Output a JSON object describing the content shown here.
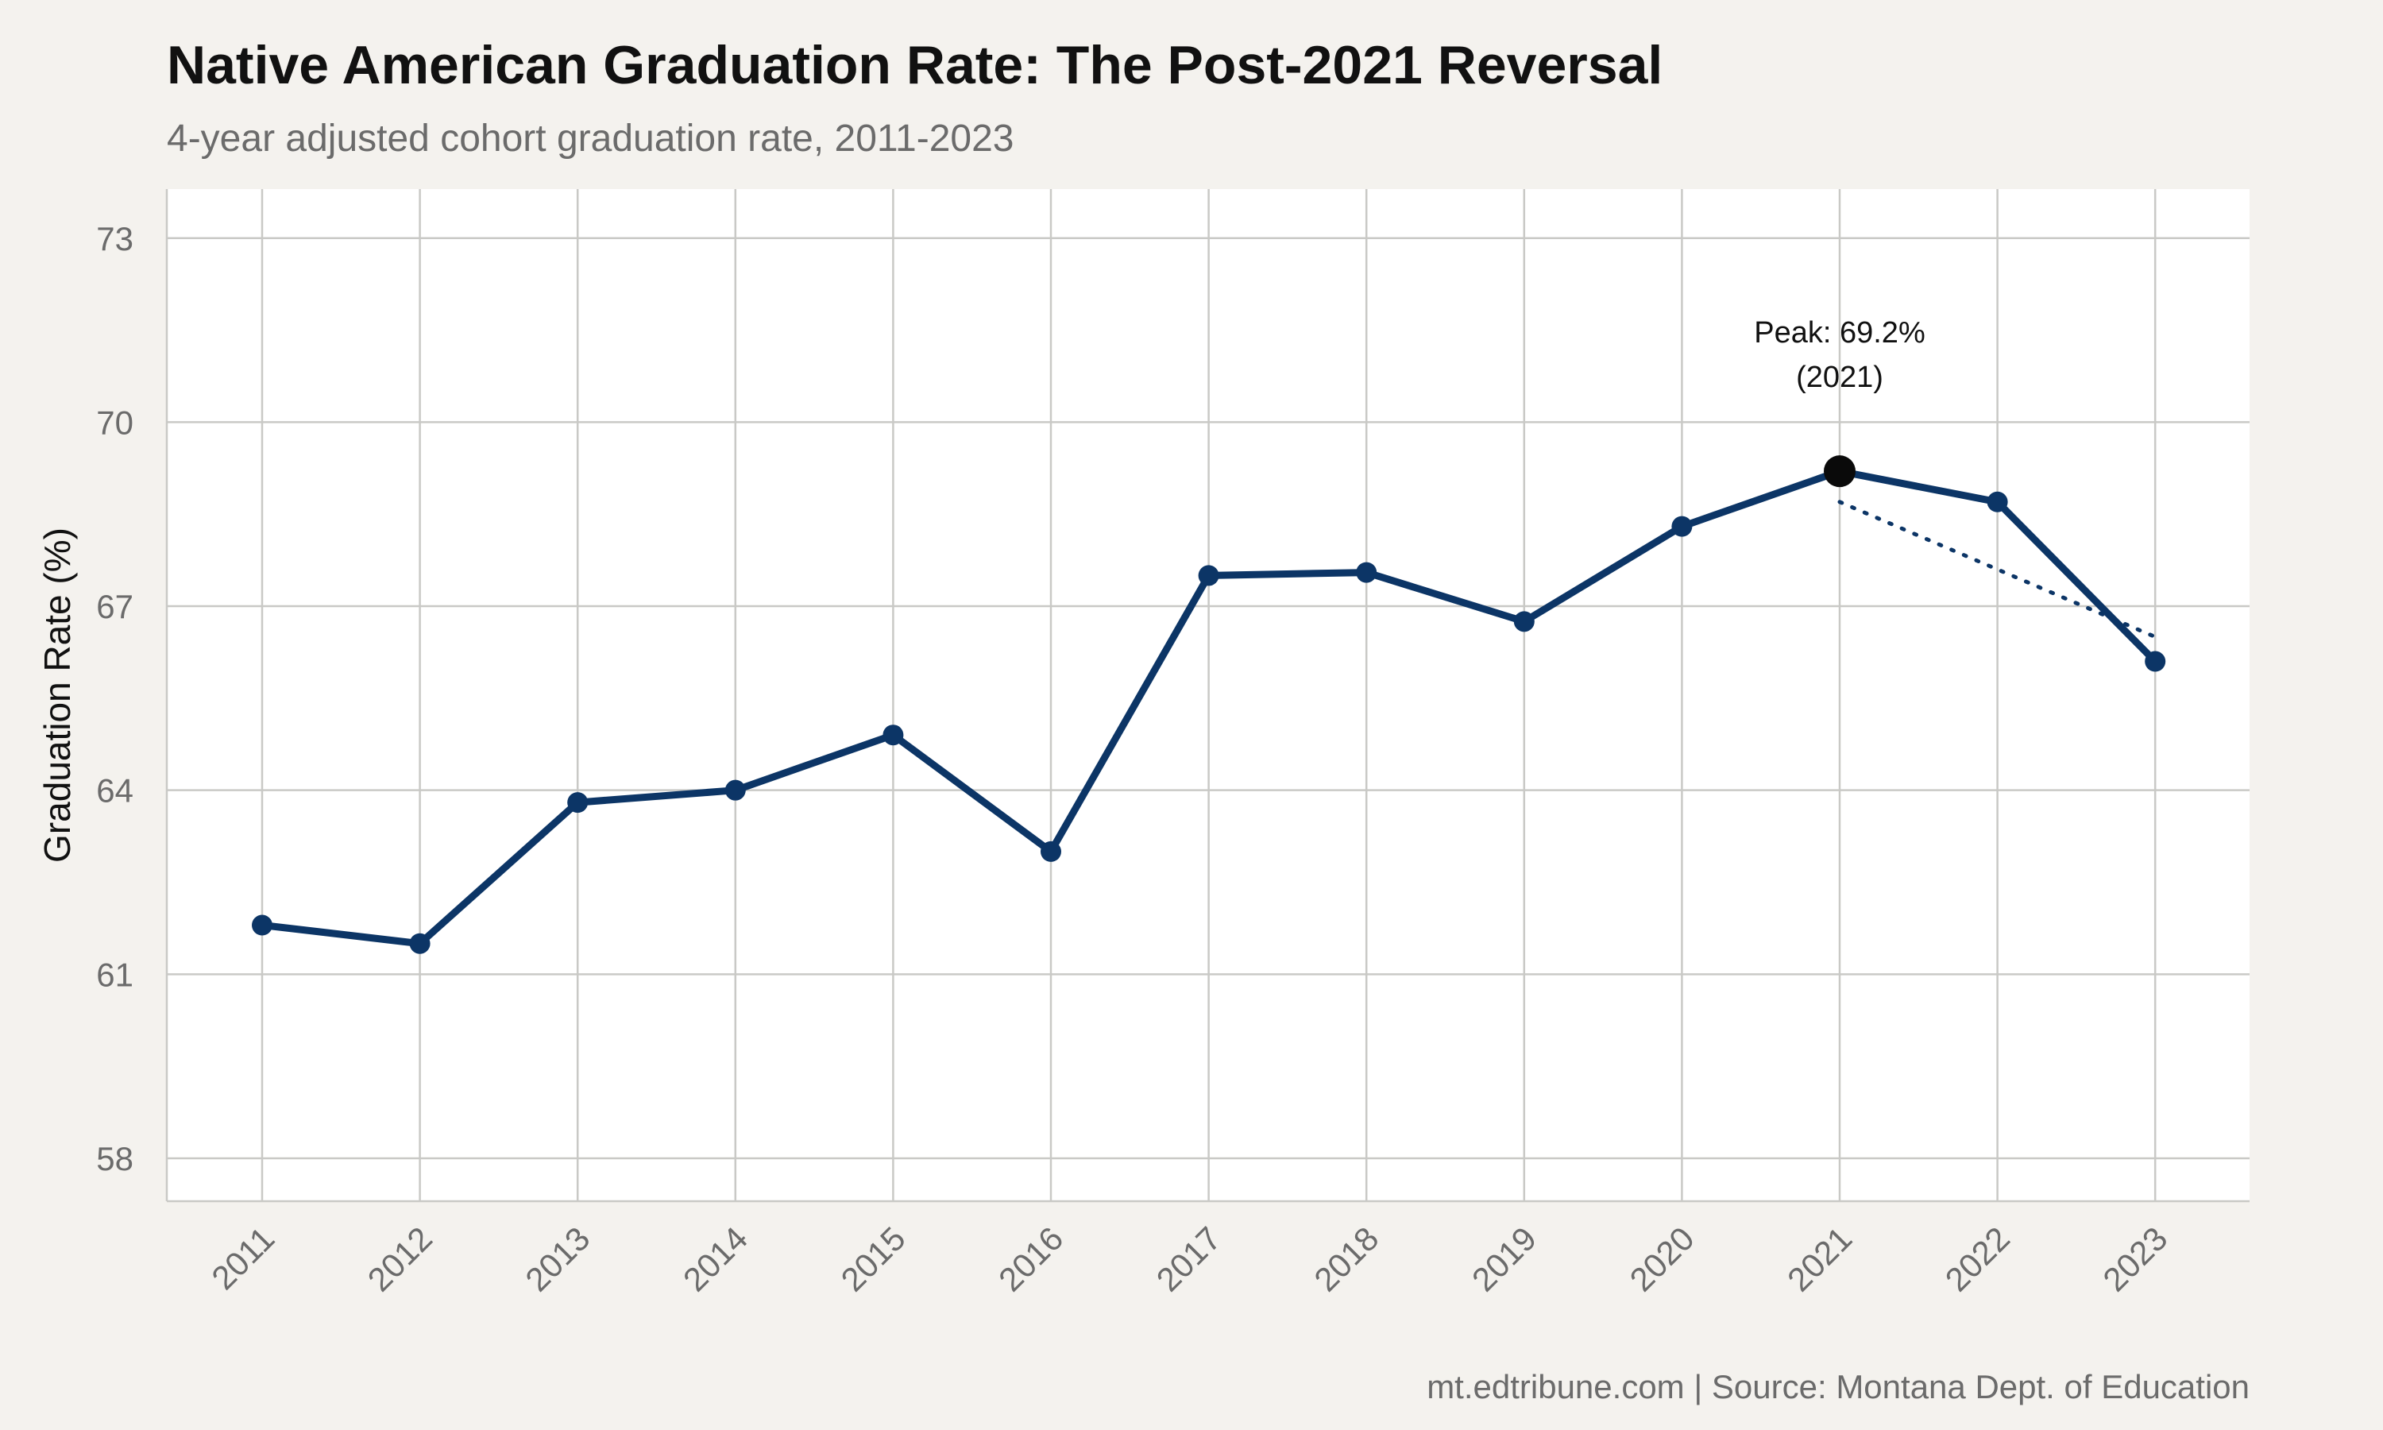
{
  "chart_data": {
    "type": "line",
    "title": "Native American Graduation Rate: The Post-2021 Reversal",
    "subtitle": "4-year adjusted cohort graduation rate, 2011-2023",
    "xlabel": "",
    "ylabel": "Graduation Rate (%)",
    "caption": "mt.edtribune.com | Source: Montana Dept. of Education",
    "x": [
      "2011",
      "2012",
      "2013",
      "2014",
      "2015",
      "2016",
      "2017",
      "2018",
      "2019",
      "2020",
      "2021",
      "2022",
      "2023"
    ],
    "series": [
      {
        "values": [
          61.8,
          61.5,
          63.8,
          64.0,
          64.9,
          63.0,
          67.5,
          67.55,
          66.75,
          68.3,
          69.2,
          68.7,
          66.1
        ]
      }
    ],
    "yticks": [
      58,
      61,
      64,
      67,
      70,
      73
    ],
    "ylim": [
      57.3,
      73.8
    ],
    "grid": true,
    "legend": "none",
    "annotation": {
      "x": "2021",
      "y": 69.2,
      "label_line1": "Peak: 69.2%",
      "label_line2": "(2021)"
    },
    "trend_segment": {
      "from": [
        "2021",
        68.7
      ],
      "to": [
        "2023",
        66.5
      ]
    },
    "colors": {
      "background": "#f4f2ee",
      "panel": "#ffffff",
      "grid": "#c9c9c6",
      "line": "#0c3566",
      "peak": "#0a0a0a",
      "title": "#111111",
      "subtitle": "#6b6b6b",
      "tick": "#6b6b6b",
      "axis_title": "#111111",
      "caption": "#6b6b6b"
    }
  }
}
